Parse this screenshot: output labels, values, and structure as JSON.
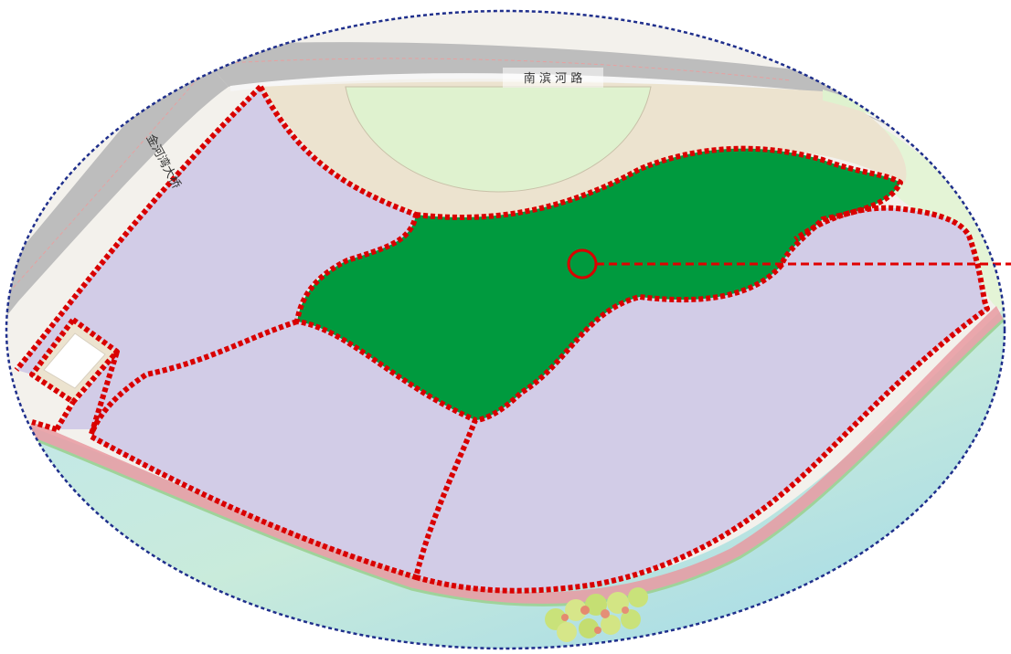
{
  "map": {
    "road_labels": {
      "south_binhe_road": "南 滨 河 路",
      "jinhewan_bridge": "金河湾大桥"
    },
    "colors": {
      "road": "#bdbdbd",
      "road_edge": "#eeeeee",
      "plaza": "#ece3cf",
      "lawn": "#dff2cf",
      "plot": "#d2cce7",
      "highlight_plot": "#009a3e",
      "boundary_dots": "#d90000",
      "embankment": "#e79aa1",
      "water": "#b9e3ec",
      "outer_ellipse": "#1f2f8c",
      "leader_line": "#e00000"
    },
    "icons": [
      "tree-cluster-icon",
      "marker-circle-icon"
    ]
  }
}
